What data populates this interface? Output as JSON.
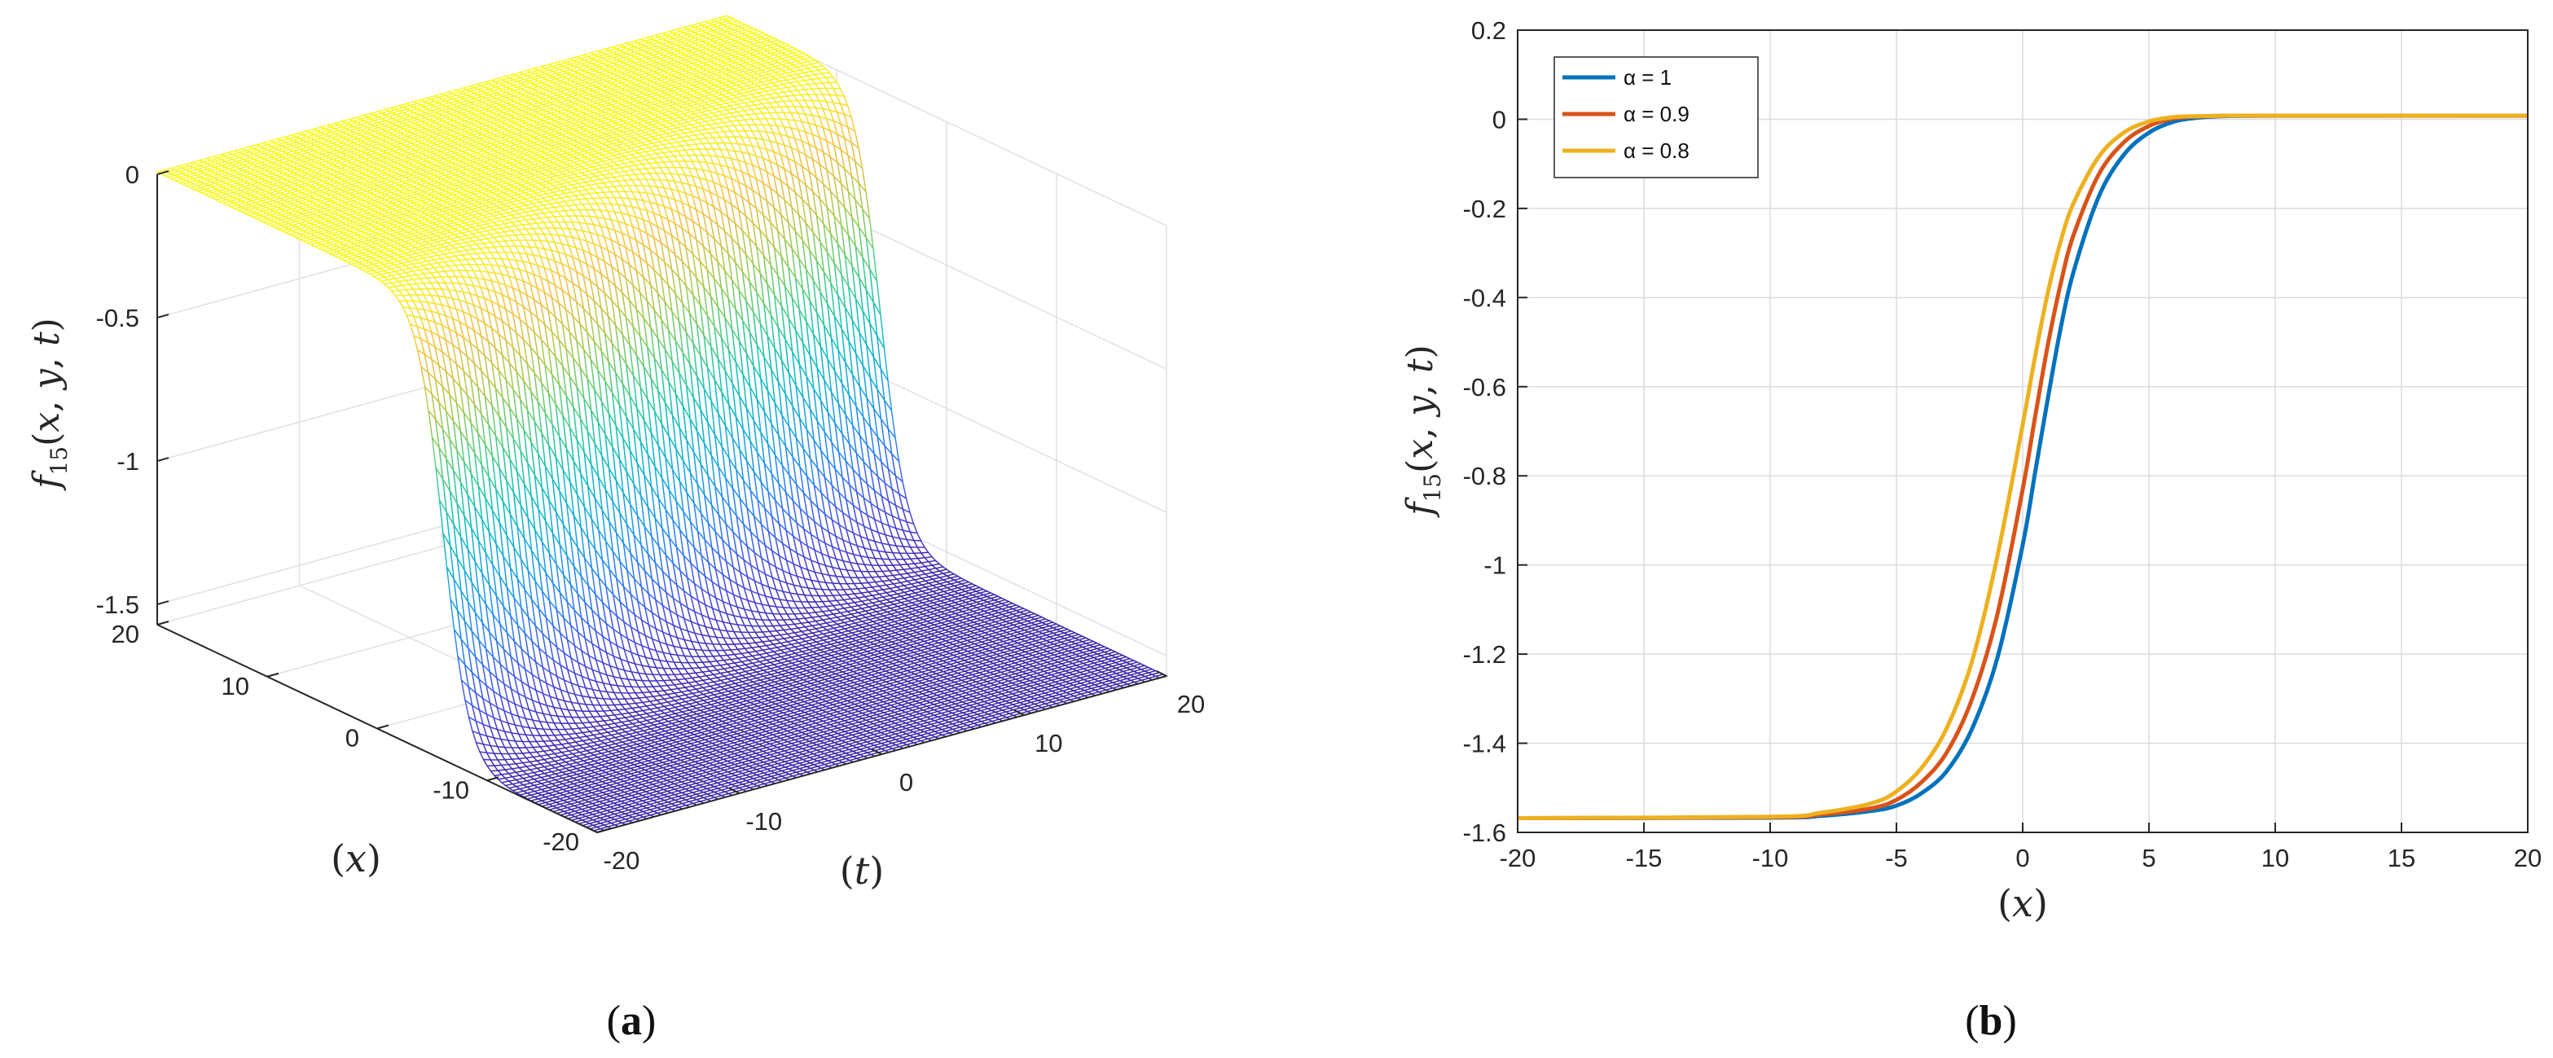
{
  "chart_data": [
    {
      "type": "surface",
      "panel_label": "a",
      "xlabel": "(t)",
      "ylabel": "(x)",
      "zlabel": "f15(x, y, t)",
      "xlim": [
        -20,
        20
      ],
      "ylim": [
        -20,
        20
      ],
      "zlim": [
        -1.5708,
        0
      ],
      "x_ticks": [
        "-20",
        "-10",
        "0",
        "10",
        "20"
      ],
      "y_ticks": [
        "-20",
        "-10",
        "0",
        "10",
        "20"
      ],
      "z_ticks": [
        "0",
        "-0.5",
        "-1",
        "-1.5"
      ],
      "x_tick_values": [
        -20,
        -10,
        0,
        10,
        20
      ],
      "y_tick_values": [
        -20,
        -10,
        0,
        10,
        20
      ],
      "z_tick_values": [
        0,
        -0.5,
        -1,
        -1.5
      ],
      "surface": {
        "low_value": -1.5708,
        "high_value": 0.008,
        "transition_x": 0,
        "drift_per_t": 0.3,
        "colormap": "parula"
      }
    },
    {
      "type": "line",
      "panel_label": "b",
      "xlabel": "(x)",
      "ylabel": "f15(x, y, t)",
      "xlim": [
        -20,
        20
      ],
      "ylim": [
        -1.6,
        0.2
      ],
      "grid": true,
      "legend_position": "top-left",
      "x_ticks": [
        "-20",
        "-15",
        "-10",
        "-5",
        "0",
        "5",
        "10",
        "15",
        "20"
      ],
      "y_ticks": [
        "0.2",
        "0",
        "-0.2",
        "-0.4",
        "-0.6",
        "-0.8",
        "-1",
        "-1.2",
        "-1.4",
        "-1.6"
      ],
      "x_tick_values": [
        -20,
        -15,
        -10,
        -5,
        0,
        5,
        10,
        15,
        20
      ],
      "y_tick_values": [
        0.2,
        0,
        -0.2,
        -0.4,
        -0.6,
        -0.8,
        -1,
        -1.2,
        -1.4,
        -1.6
      ],
      "series": [
        {
          "name": "α = 1",
          "color": "#0072BD",
          "x": [
            -20,
            -10,
            -8,
            -6,
            -5,
            -4,
            -3,
            -2,
            -1,
            0,
            0.5,
            1,
            1.5,
            2,
            3,
            4,
            5,
            6,
            7,
            8,
            10,
            20
          ],
          "y": [
            -1.568,
            -1.567,
            -1.563,
            -1.552,
            -1.54,
            -1.512,
            -1.462,
            -1.367,
            -1.208,
            -0.955,
            -0.79,
            -0.625,
            -0.47,
            -0.345,
            -0.175,
            -0.08,
            -0.03,
            -0.005,
            0.004,
            0.007,
            0.008,
            0.008
          ]
        },
        {
          "name": "α = 0.9",
          "color": "#D95319",
          "x": [
            -20,
            -10,
            -8,
            -6,
            -5,
            -4,
            -3,
            -2,
            -1,
            0,
            0.5,
            1,
            1.5,
            2,
            3,
            4,
            5,
            6,
            7,
            8,
            10,
            20
          ],
          "y": [
            -1.568,
            -1.566,
            -1.56,
            -1.546,
            -1.527,
            -1.487,
            -1.42,
            -1.3,
            -1.11,
            -0.83,
            -0.665,
            -0.505,
            -0.37,
            -0.262,
            -0.125,
            -0.052,
            -0.015,
            0.002,
            0.006,
            0.008,
            0.008,
            0.008
          ]
        },
        {
          "name": "α = 0.8",
          "color": "#EDB120",
          "x": [
            -20,
            -10,
            -8,
            -6,
            -5,
            -4,
            -3,
            -2,
            -1,
            0,
            0.5,
            1,
            1.5,
            2,
            3,
            4,
            5,
            6,
            7,
            8,
            10,
            20
          ],
          "y": [
            -1.568,
            -1.565,
            -1.556,
            -1.535,
            -1.508,
            -1.455,
            -1.365,
            -1.215,
            -0.98,
            -0.685,
            -0.53,
            -0.388,
            -0.275,
            -0.19,
            -0.085,
            -0.03,
            -0.005,
            0.005,
            0.007,
            0.008,
            0.008,
            0.008
          ]
        }
      ]
    }
  ]
}
